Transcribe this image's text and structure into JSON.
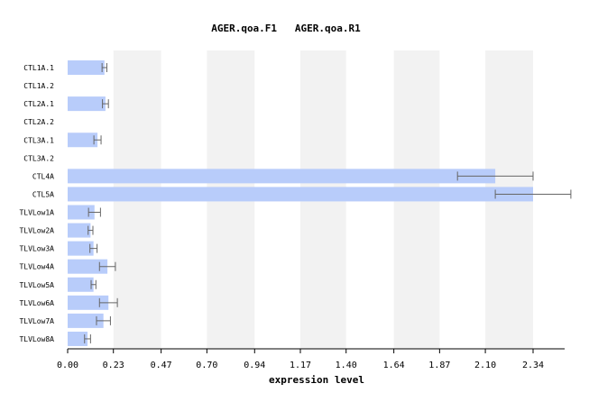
{
  "chart_data": {
    "type": "bar",
    "orientation": "horizontal",
    "title": "AGER.qoa.F1   AGER.qoa.R1",
    "xlabel": "expression level",
    "ylabel": "",
    "xlim": [
      0,
      2.5
    ],
    "x_ticks": [
      "0.00",
      "0.23",
      "0.47",
      "0.70",
      "0.94",
      "1.17",
      "1.40",
      "1.64",
      "1.87",
      "2.10",
      "2.34"
    ],
    "grid": "alternating vertical bands",
    "categories": [
      "CTL1A.1",
      "CTL1A.2",
      "CTL2A.1",
      "CTL2A.2",
      "CTL3A.1",
      "CTL3A.2",
      "CTL4A",
      "CTL5A",
      "TLVLow1A",
      "TLVLow2A",
      "TLVLow3A",
      "TLVLow4A",
      "TLVLow5A",
      "TLVLow6A",
      "TLVLow7A",
      "TLVLow8A"
    ],
    "values": [
      0.185,
      null,
      0.19,
      null,
      0.15,
      null,
      2.15,
      2.34,
      0.135,
      0.115,
      0.13,
      0.2,
      0.13,
      0.205,
      0.18,
      0.1
    ],
    "error": [
      0.012,
      null,
      0.015,
      null,
      0.018,
      null,
      0.19,
      0.19,
      0.03,
      0.012,
      0.018,
      0.04,
      0.012,
      0.045,
      0.035,
      0.015
    ],
    "colors": {
      "bar": "#b8ccfa",
      "band": "#f2f2f2",
      "error_bar": "#666666",
      "axis": "#000000"
    }
  }
}
